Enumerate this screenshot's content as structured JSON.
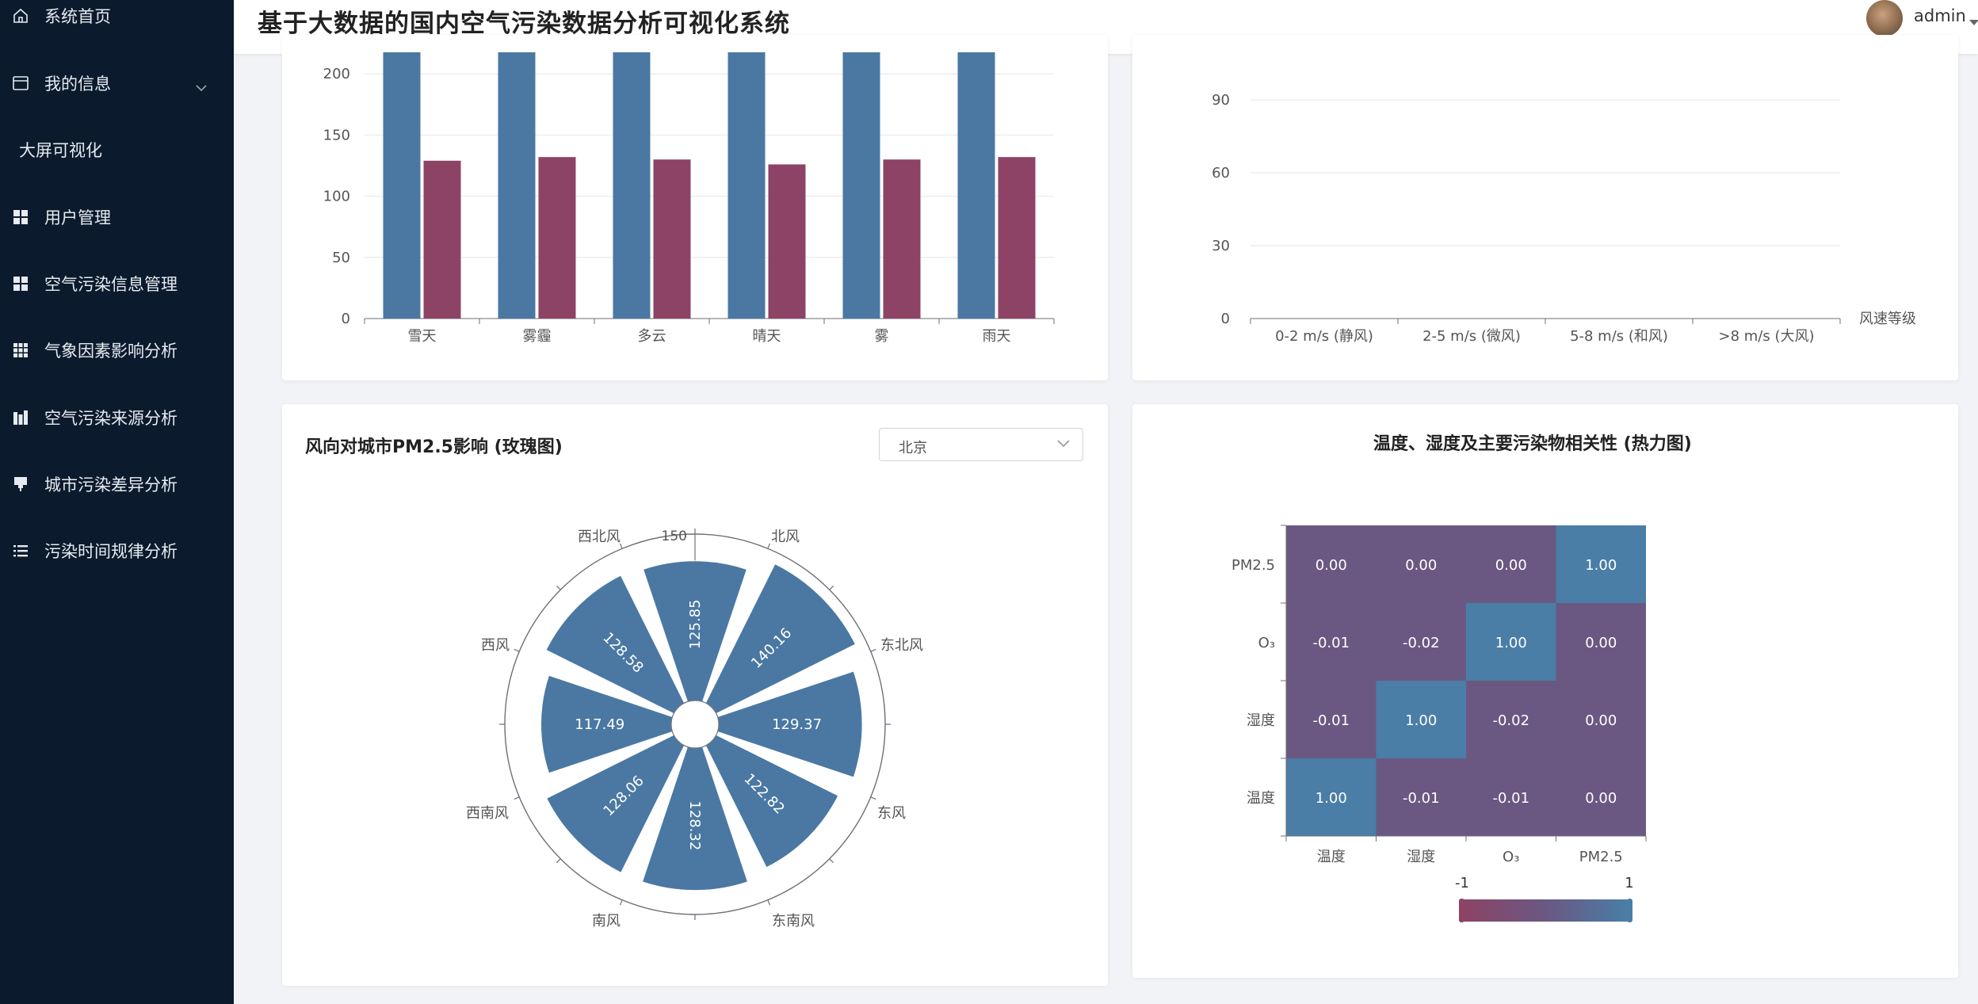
{
  "app": {
    "title": "基于大数据的国内空气污染数据分析可视化系统",
    "user": "admin"
  },
  "sidebar": {
    "items": [
      {
        "label": "系统首页",
        "icon": "home-icon"
      },
      {
        "label": "我的信息",
        "icon": "info-icon"
      },
      {
        "label": "大屏可视化",
        "icon": ""
      },
      {
        "label": "用户管理",
        "icon": "grid-icon"
      },
      {
        "label": "空气污染信息管理",
        "icon": "grid-icon"
      },
      {
        "label": "气象因素影响分析",
        "icon": "apps-icon"
      },
      {
        "label": "空气污染来源分析",
        "icon": "bar-icon"
      },
      {
        "label": "城市污染差异分析",
        "icon": "pin-icon"
      },
      {
        "label": "污染时间规律分析",
        "icon": "list-icon"
      }
    ]
  },
  "cards": {
    "rose": {
      "title": "风向对城市PM2.5影响 (玫瑰图)",
      "city_select": "北京"
    },
    "heatmap": {
      "title": "温度、湿度及主要污染物相关性 (热力图)"
    }
  },
  "chart_data": [
    {
      "type": "bar",
      "categories": [
        "雪天",
        "雾霾",
        "多云",
        "晴天",
        "雾",
        "雨天"
      ],
      "series": [
        {
          "values": [
            220,
            220,
            220,
            220,
            220,
            220
          ],
          "color": "#4a78a2"
        },
        {
          "values": [
            129,
            132,
            130,
            126,
            130,
            132
          ],
          "color": "#8c4366"
        }
      ],
      "yticks": [
        0,
        50,
        100,
        150,
        200
      ],
      "ylim": [
        0,
        200
      ],
      "colors": {
        "a": "#4a78a2",
        "b": "#8c4366"
      }
    },
    {
      "type": "bar",
      "categories": [
        "0-2 m/s (静风)",
        "2-5 m/s (微风)",
        "5-8 m/s (和风)",
        ">8 m/s (大风)"
      ],
      "values": [
        0,
        0,
        0,
        0
      ],
      "yticks": [
        0,
        30,
        60,
        90
      ],
      "ylim": [
        0,
        90
      ],
      "xname": "风速等级"
    },
    {
      "type": "pie",
      "subtype": "rose",
      "categories": [
        "北风",
        "东北风",
        "东风",
        "东南风",
        "南风",
        "西南风",
        "西风",
        "西北风"
      ],
      "values": [
        125.85,
        140.16,
        129.37,
        122.82,
        128.32,
        128.06,
        117.49,
        128.58
      ],
      "rmax": 150,
      "axis_label": "150",
      "color": "#4a78a2"
    },
    {
      "type": "heatmap",
      "x": [
        "温度",
        "湿度",
        "O₃",
        "PM2.5"
      ],
      "y": [
        "温度",
        "湿度",
        "O₃",
        "PM2.5"
      ],
      "matrix": [
        [
          "1.00",
          "-0.01",
          "-0.01",
          "0.00"
        ],
        [
          "-0.01",
          "1.00",
          "-0.02",
          "0.00"
        ],
        [
          "-0.01",
          "-0.02",
          "1.00",
          "0.00"
        ],
        [
          "0.00",
          "0.00",
          "0.00",
          "1.00"
        ]
      ],
      "range": [
        -1,
        1
      ],
      "range_labels": [
        "-1",
        "1"
      ],
      "colors": {
        "high": "#4a7ea6",
        "mid": "#6a5882",
        "low": "#8c4366"
      }
    }
  ]
}
